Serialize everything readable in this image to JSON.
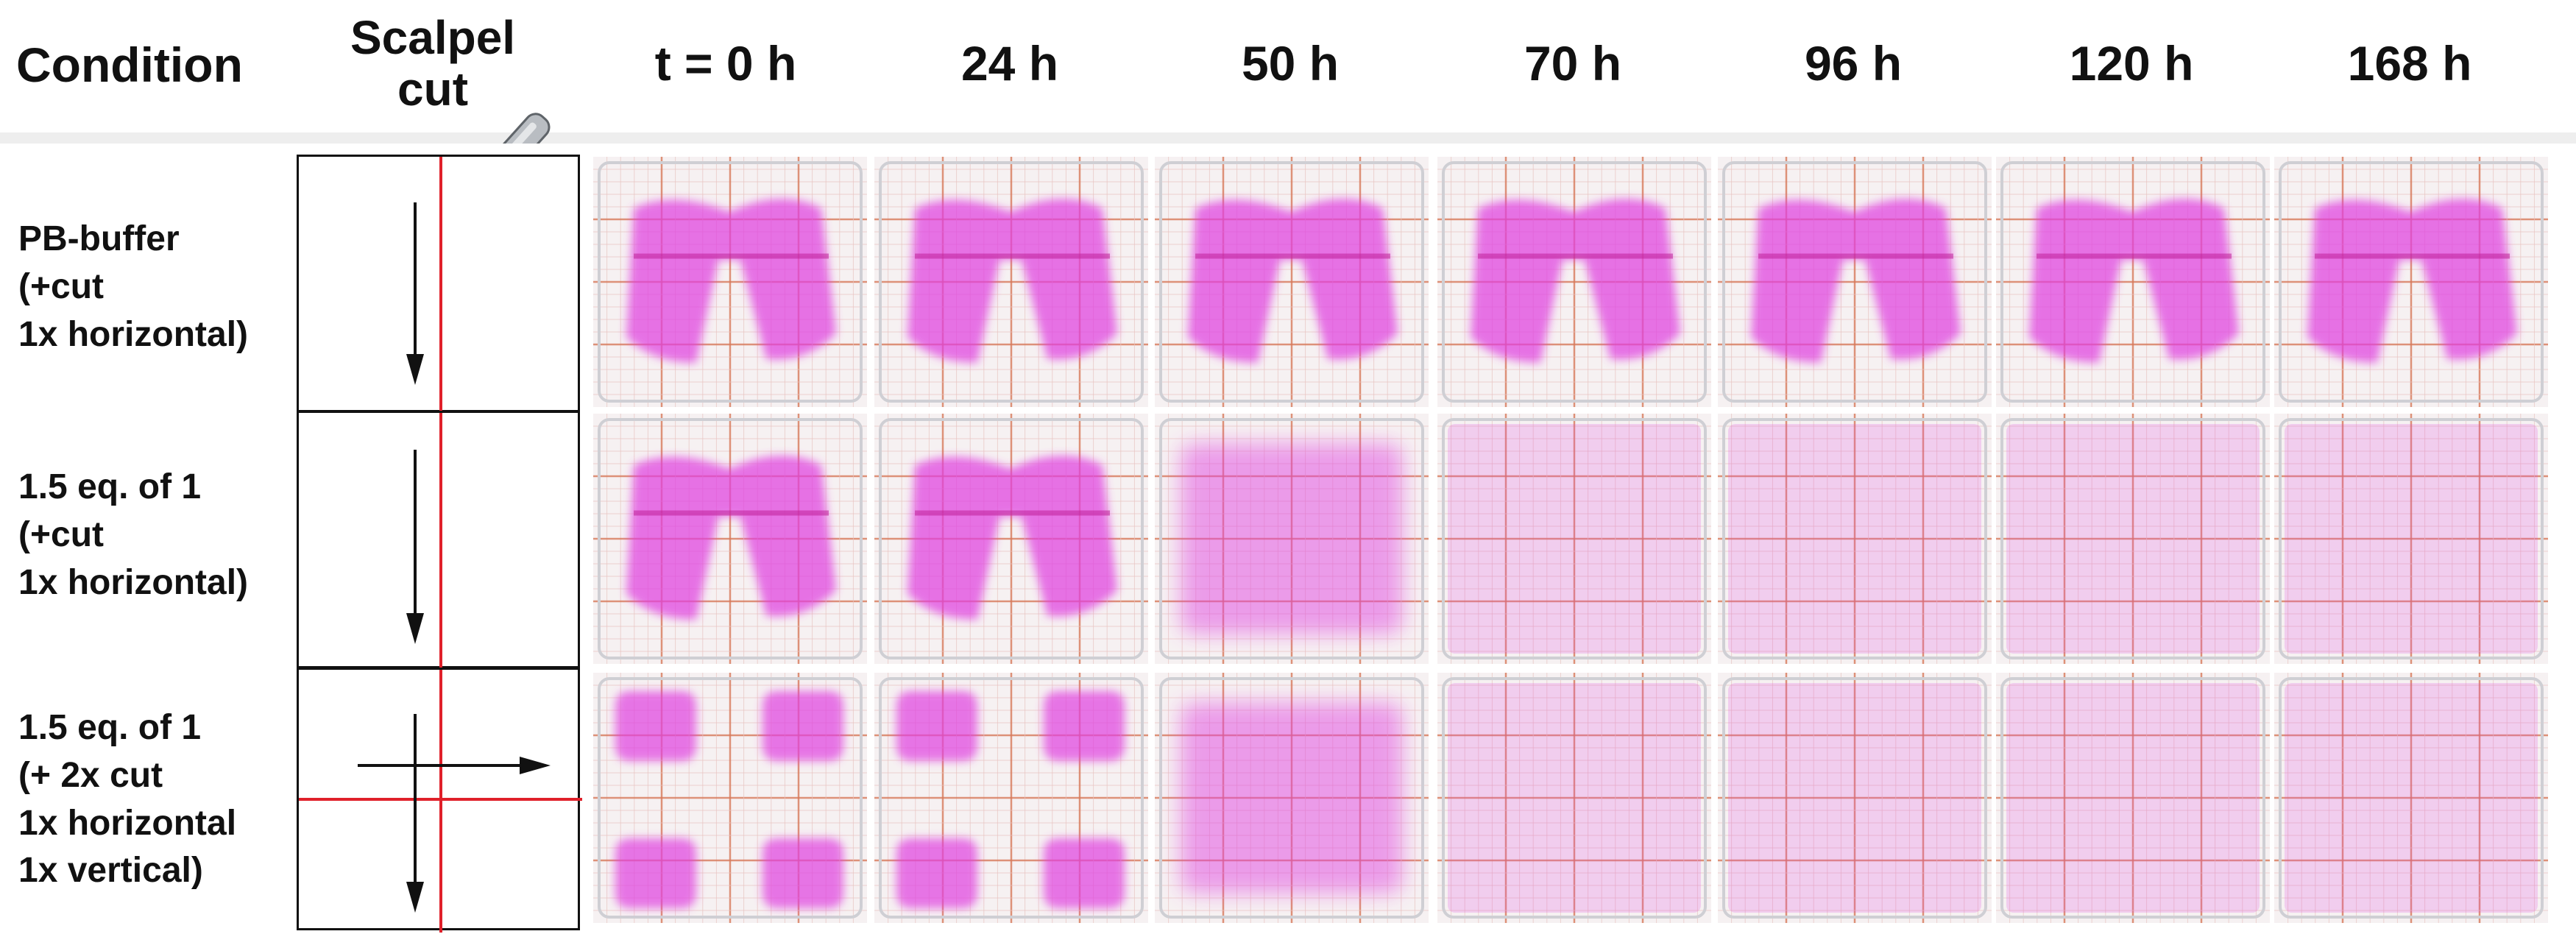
{
  "header": {
    "condition": "Condition",
    "scalpel_line1": "Scalpel",
    "scalpel_line2": "cut",
    "times": [
      "t = 0 h",
      "24 h",
      "50 h",
      "70 h",
      "96 h",
      "120 h",
      "168 h"
    ]
  },
  "rows": [
    {
      "label_lines": [
        "PB-buffer",
        "(+cut",
        "1x horizontal)"
      ],
      "cut_pattern": "one vertical cut, arrow down",
      "gel_state": [
        "separated",
        "separated",
        "separated",
        "separated",
        "separated",
        "separated",
        "separated"
      ]
    },
    {
      "label_lines": [
        "1.5 eq. of 1",
        "(+cut",
        "1x horizontal)"
      ],
      "cut_pattern": "one vertical cut, arrow down",
      "gel_state": [
        "separated",
        "separated",
        "dissolving",
        "dissolved",
        "dissolved",
        "dissolved",
        "dissolved"
      ]
    },
    {
      "label_lines": [
        "1.5 eq. of 1",
        "(+ 2x cut",
        "1x horizontal",
        "1x vertical)"
      ],
      "cut_pattern": "vertical and horizontal cut, arrows down and right",
      "gel_state": [
        "four pieces",
        "four pieces",
        "dissolving",
        "dissolved",
        "dissolved",
        "dissolved",
        "dissolved"
      ]
    }
  ],
  "colors": {
    "gel": "#e040e0",
    "cut_line": "#e0202a",
    "grid_line": "#d77a5a",
    "arrow": "#111111"
  },
  "icons": [
    "scalpel-icon",
    "arrow-down-icon",
    "arrow-right-icon"
  ]
}
